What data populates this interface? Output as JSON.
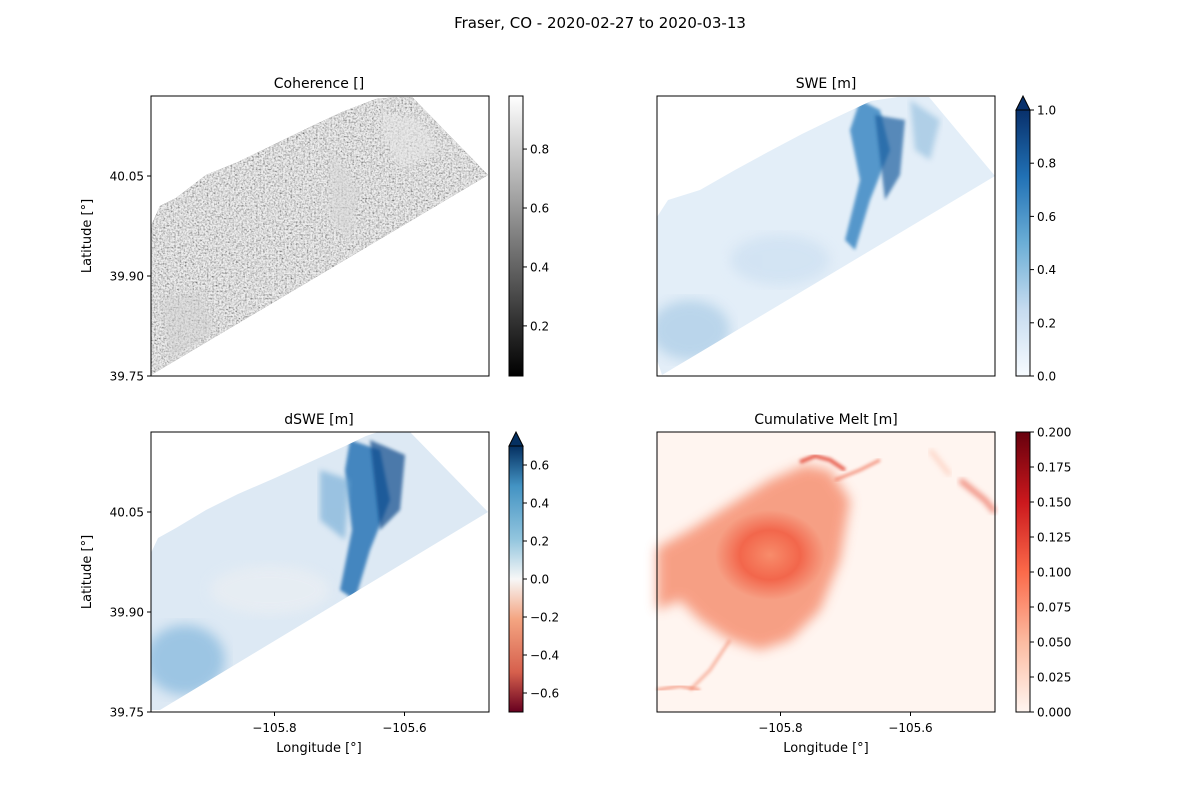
{
  "figure": {
    "suptitle": "Fraser, CO - 2020-02-27 to 2020-03-13"
  },
  "chart_data": [
    {
      "type": "heatmap",
      "id": "coherence",
      "title": "Coherence []",
      "xlabel": "",
      "ylabel": "Latitude [°]",
      "xlim": [
        -105.99,
        -105.47
      ],
      "ylim": [
        39.75,
        40.17
      ],
      "yticks": [
        39.75,
        39.9,
        40.05
      ],
      "ytick_labels": [
        "39.75",
        "39.90",
        "40.05"
      ],
      "xticks": [],
      "xtick_labels": [],
      "colormap": "gray",
      "colorbar": {
        "min": 0.03,
        "max": 0.98,
        "extend": "neither",
        "ticks": [
          0.2,
          0.4,
          0.6,
          0.8
        ],
        "tick_labels": [
          "0.2",
          "0.4",
          "0.6",
          "0.8"
        ]
      }
    },
    {
      "type": "heatmap",
      "id": "swe",
      "title": "SWE [m]",
      "xlabel": "",
      "ylabel": "",
      "xlim": [
        -105.99,
        -105.47
      ],
      "ylim": [
        39.75,
        40.17
      ],
      "yticks": [],
      "ytick_labels": [],
      "xticks": [],
      "xtick_labels": [],
      "colormap": "Blues",
      "colorbar": {
        "min": 0.0,
        "max": 1.0,
        "extend": "max",
        "ticks": [
          0.0,
          0.2,
          0.4,
          0.6,
          0.8,
          1.0
        ],
        "tick_labels": [
          "0.0",
          "0.2",
          "0.4",
          "0.6",
          "0.8",
          "1.0"
        ]
      }
    },
    {
      "type": "heatmap",
      "id": "dswe",
      "title": "dSWE [m]",
      "xlabel": "Longitude [°]",
      "ylabel": "Latitude [°]",
      "xlim": [
        -105.99,
        -105.47
      ],
      "ylim": [
        39.75,
        40.17
      ],
      "yticks": [
        39.75,
        39.9,
        40.05
      ],
      "ytick_labels": [
        "39.75",
        "39.90",
        "40.05"
      ],
      "xticks": [
        -105.8,
        -105.6
      ],
      "xtick_labels": [
        "−105.8",
        "−105.6"
      ],
      "colormap": "RdBu",
      "colorbar": {
        "min": -0.7,
        "max": 0.7,
        "extend": "max",
        "ticks": [
          -0.6,
          -0.4,
          -0.2,
          0.0,
          0.2,
          0.4,
          0.6
        ],
        "tick_labels": [
          "−0.6",
          "−0.4",
          "−0.2",
          "0.0",
          "0.2",
          "0.4",
          "0.6"
        ]
      }
    },
    {
      "type": "heatmap",
      "id": "melt",
      "title": "Cumulative Melt [m]",
      "xlabel": "Longitude [°]",
      "ylabel": "",
      "xlim": [
        -105.99,
        -105.47
      ],
      "ylim": [
        39.75,
        40.17
      ],
      "yticks": [],
      "ytick_labels": [],
      "xticks": [
        -105.8,
        -105.6
      ],
      "xtick_labels": [
        "−105.8",
        "−105.6"
      ],
      "colormap": "Reds",
      "colorbar": {
        "min": 0.0,
        "max": 0.2,
        "extend": "neither",
        "ticks": [
          0.0,
          0.025,
          0.05,
          0.075,
          0.1,
          0.125,
          0.15,
          0.175,
          0.2
        ],
        "tick_labels": [
          "0.000",
          "0.025",
          "0.050",
          "0.075",
          "0.100",
          "0.125",
          "0.150",
          "0.175",
          "0.200"
        ]
      }
    }
  ]
}
